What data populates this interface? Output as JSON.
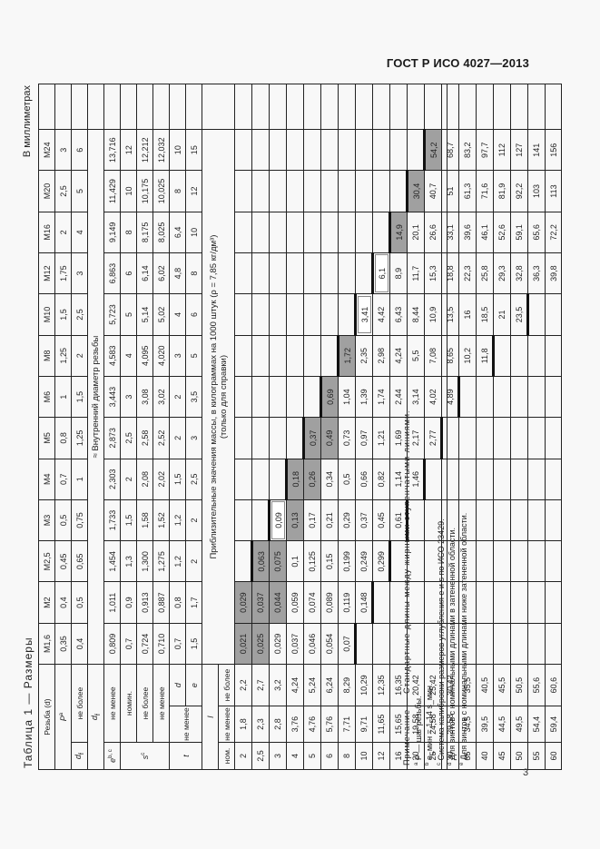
{
  "header": {
    "standard": "ГОСТ Р ИСО 4027—2013"
  },
  "page_number": "3",
  "table": {
    "caption": "Таблица 1 — Размеры",
    "units": "В миллиметрах",
    "thread_label": "Резьба (d)",
    "threads": [
      "M1,6",
      "M2",
      "M2,5",
      "M3",
      "M4",
      "M5",
      "M6",
      "M8",
      "M10",
      "M12",
      "M16",
      "M20",
      "M24"
    ],
    "rows": {
      "P": {
        "label": "P",
        "sup": "a",
        "values": [
          "0,35",
          "0,4",
          "0,45",
          "0,5",
          "0,7",
          "0,8",
          "1",
          "1,25",
          "1,5",
          "1,75",
          "2",
          "2,5",
          "3"
        ]
      },
      "df": {
        "group": "d_f",
        "label": "не более",
        "values": [
          "0,4",
          "0,5",
          "0,65",
          "0,75",
          "1",
          "1,25",
          "1,5",
          "2",
          "2,5",
          "3",
          "4",
          "5",
          "6"
        ]
      },
      "df_note": {
        "label": "d_f",
        "text": "≈ Внутренний диаметр резьбы"
      },
      "e_min": {
        "group": "e",
        "sup": "b, c",
        "label": "не менее",
        "values": [
          "0,809",
          "1,011",
          "1,454",
          "1,733",
          "2,303",
          "2,873",
          "3,443",
          "4,583",
          "5,723",
          "6,863",
          "9,149",
          "11,429",
          "13,716"
        ]
      },
      "s_nom": {
        "group": "s",
        "sup": "c",
        "label": "номин.",
        "values": [
          "0,7",
          "0,9",
          "1,3",
          "1,5",
          "2",
          "2,5",
          "3",
          "4",
          "5",
          "6",
          "8",
          "10",
          "12"
        ]
      },
      "s_max": {
        "label": "не более",
        "values": [
          "0,724",
          "0,913",
          "1,300",
          "1,58",
          "2,08",
          "2,58",
          "3,08",
          "4,095",
          "5,14",
          "6,14",
          "8,175",
          "10,175",
          "12,212"
        ]
      },
      "s_min": {
        "label": "не менее",
        "values": [
          "0,710",
          "0,887",
          "1,275",
          "1,52",
          "2,02",
          "2,52",
          "3,02",
          "4,020",
          "5,02",
          "6,02",
          "8,025",
          "10,025",
          "12,032"
        ]
      },
      "t_d": {
        "group": "t",
        "sublabel": "не менее",
        "label": "d",
        "values": [
          "0,7",
          "0,8",
          "1,2",
          "1,2",
          "1,5",
          "2",
          "2",
          "3",
          "4",
          "4,8",
          "6,4",
          "8",
          "10"
        ]
      },
      "t_e": {
        "label": "e",
        "values": [
          "1,5",
          "1,7",
          "2",
          "2",
          "2,5",
          "3",
          "3,5",
          "5",
          "6",
          "8",
          "10",
          "12",
          "15"
        ]
      }
    },
    "mass_header": {
      "l_label": "l",
      "text": "Приблизительные значения массы, в килограммах на 1000 штук (ρ = 7,85 кг/дм³)",
      "subtext": "(только для справки)"
    },
    "l_headers": [
      "ном.",
      "не менее",
      "не более"
    ],
    "length_rows": [
      {
        "nom": "2",
        "min": "1,8",
        "max": "2,2",
        "m": [
          "0,021",
          "0,029",
          "",
          "",
          "",
          "",
          "",
          "",
          "",
          "",
          "",
          "",
          ""
        ]
      },
      {
        "nom": "2,5",
        "min": "2,3",
        "max": "2,7",
        "m": [
          "0,025",
          "0,037",
          "0,063",
          "",
          "",
          "",
          "",
          "",
          "",
          "",
          "",
          "",
          ""
        ]
      },
      {
        "nom": "3",
        "min": "2,8",
        "max": "3,2",
        "m": [
          "0,029",
          "0,044",
          "0,075",
          "0,09",
          "",
          "",
          "",
          "",
          "",
          "",
          "",
          "",
          ""
        ]
      },
      {
        "nom": "4",
        "min": "3,76",
        "max": "4,24",
        "m": [
          "0,037",
          "0,059",
          "0,1",
          "0,13",
          "0,18",
          "",
          "",
          "",
          "",
          "",
          "",
          "",
          ""
        ]
      },
      {
        "nom": "5",
        "min": "4,76",
        "max": "5,24",
        "m": [
          "0,046",
          "0,074",
          "0,125",
          "0,17",
          "0,26",
          "0,37",
          "",
          "",
          "",
          "",
          "",
          "",
          ""
        ]
      },
      {
        "nom": "6",
        "min": "5,76",
        "max": "6,24",
        "m": [
          "0,054",
          "0,089",
          "0,15",
          "0,21",
          "0,34",
          "0,49",
          "0,69",
          "",
          "",
          "",
          "",
          "",
          ""
        ]
      },
      {
        "nom": "8",
        "min": "7,71",
        "max": "8,29",
        "m": [
          "0,07",
          "0,119",
          "0,199",
          "0,29",
          "0,5",
          "0,73",
          "1,04",
          "1,72",
          "",
          "",
          "",
          "",
          ""
        ]
      },
      {
        "nom": "10",
        "min": "9,71",
        "max": "10,29",
        "m": [
          "",
          "0,148",
          "0,249",
          "0,37",
          "0,66",
          "0,97",
          "1,39",
          "2,35",
          "3,41",
          "",
          "",
          "",
          ""
        ]
      },
      {
        "nom": "12",
        "min": "11,65",
        "max": "12,35",
        "m": [
          "",
          "",
          "0,299",
          "0,45",
          "0,82",
          "1,21",
          "1,74",
          "2,98",
          "4,42",
          "6,1",
          "",
          "",
          ""
        ]
      },
      {
        "nom": "16",
        "min": "15,65",
        "max": "16,35",
        "m": [
          "",
          "",
          "",
          "0,61",
          "1,14",
          "1,69",
          "2,44",
          "4,24",
          "6,43",
          "8,9",
          "14,9",
          "",
          ""
        ]
      },
      {
        "nom": "20",
        "min": "19,58",
        "max": "20,42",
        "m": [
          "",
          "",
          "",
          "",
          "1,46",
          "2,17",
          "3,14",
          "5,5",
          "8,44",
          "11,7",
          "20,1",
          "30,4",
          ""
        ]
      },
      {
        "nom": "25",
        "min": "24,58",
        "max": "25,42",
        "m": [
          "",
          "",
          "",
          "",
          "",
          "2,77",
          "4,02",
          "7,08",
          "10,9",
          "15,3",
          "26,6",
          "40,7",
          "54,2"
        ]
      },
      {
        "nom": "30",
        "min": "29,58",
        "max": "30,42",
        "m": [
          "",
          "",
          "",
          "",
          "",
          "",
          "4,89",
          "8,65",
          "13,5",
          "18,8",
          "33,1",
          "51",
          "68,7"
        ]
      },
      {
        "nom": "35",
        "min": "34,5",
        "max": "35,5",
        "m": [
          "",
          "",
          "",
          "",
          "",
          "",
          "",
          "10,2",
          "16",
          "22,3",
          "39,6",
          "61,3",
          "83,2"
        ]
      },
      {
        "nom": "40",
        "min": "39,5",
        "max": "40,5",
        "m": [
          "",
          "",
          "",
          "",
          "",
          "",
          "",
          "11,8",
          "18,5",
          "25,8",
          "46,1",
          "71,6",
          "97,7"
        ]
      },
      {
        "nom": "45",
        "min": "44,5",
        "max": "45,5",
        "m": [
          "",
          "",
          "",
          "",
          "",
          "",
          "",
          "",
          "21",
          "29,3",
          "52,6",
          "81,9",
          "112"
        ]
      },
      {
        "nom": "50",
        "min": "49,5",
        "max": "50,5",
        "m": [
          "",
          "",
          "",
          "",
          "",
          "",
          "",
          "",
          "23,5",
          "32,8",
          "59,1",
          "92,2",
          "127"
        ]
      },
      {
        "nom": "55",
        "min": "54,4",
        "max": "55,6",
        "m": [
          "",
          "",
          "",
          "",
          "",
          "",
          "",
          "",
          "",
          "36,3",
          "65,6",
          "103",
          "141"
        ]
      },
      {
        "nom": "60",
        "min": "59,4",
        "max": "60,6",
        "m": [
          "",
          "",
          "",
          "",
          "",
          "",
          "",
          "",
          "",
          "39,8",
          "72,2",
          "113",
          "156"
        ]
      }
    ],
    "shaded": [
      [
        0,
        0
      ],
      [
        0,
        1
      ],
      [
        1,
        0
      ],
      [
        1,
        1
      ],
      [
        1,
        2
      ],
      [
        2,
        1
      ],
      [
        2,
        2
      ],
      [
        3,
        3
      ],
      [
        3,
        4
      ],
      [
        4,
        4
      ],
      [
        4,
        5
      ],
      [
        5,
        5
      ],
      [
        5,
        6
      ],
      [
        6,
        7
      ],
      [
        10,
        11
      ],
      [
        11,
        12
      ],
      [
        9,
        10
      ]
    ],
    "outlined": [
      [
        2,
        3
      ],
      [
        7,
        8
      ],
      [
        8,
        9
      ]
    ],
    "notes": {
      "remark": "Примечание — Стандартные длины между жирными ступенчатыми линиями.",
      "a": "P — шаг резьбы.",
      "b": "e_мин = 1,14 s_мин.",
      "c": "Система калибровки размеров углубления e и s по ИСО 23429.",
      "d": "Для винтов с номинальными длинами в затененной области.",
      "e": "Для винтов с номинальными длинами ниже затененной области."
    }
  }
}
